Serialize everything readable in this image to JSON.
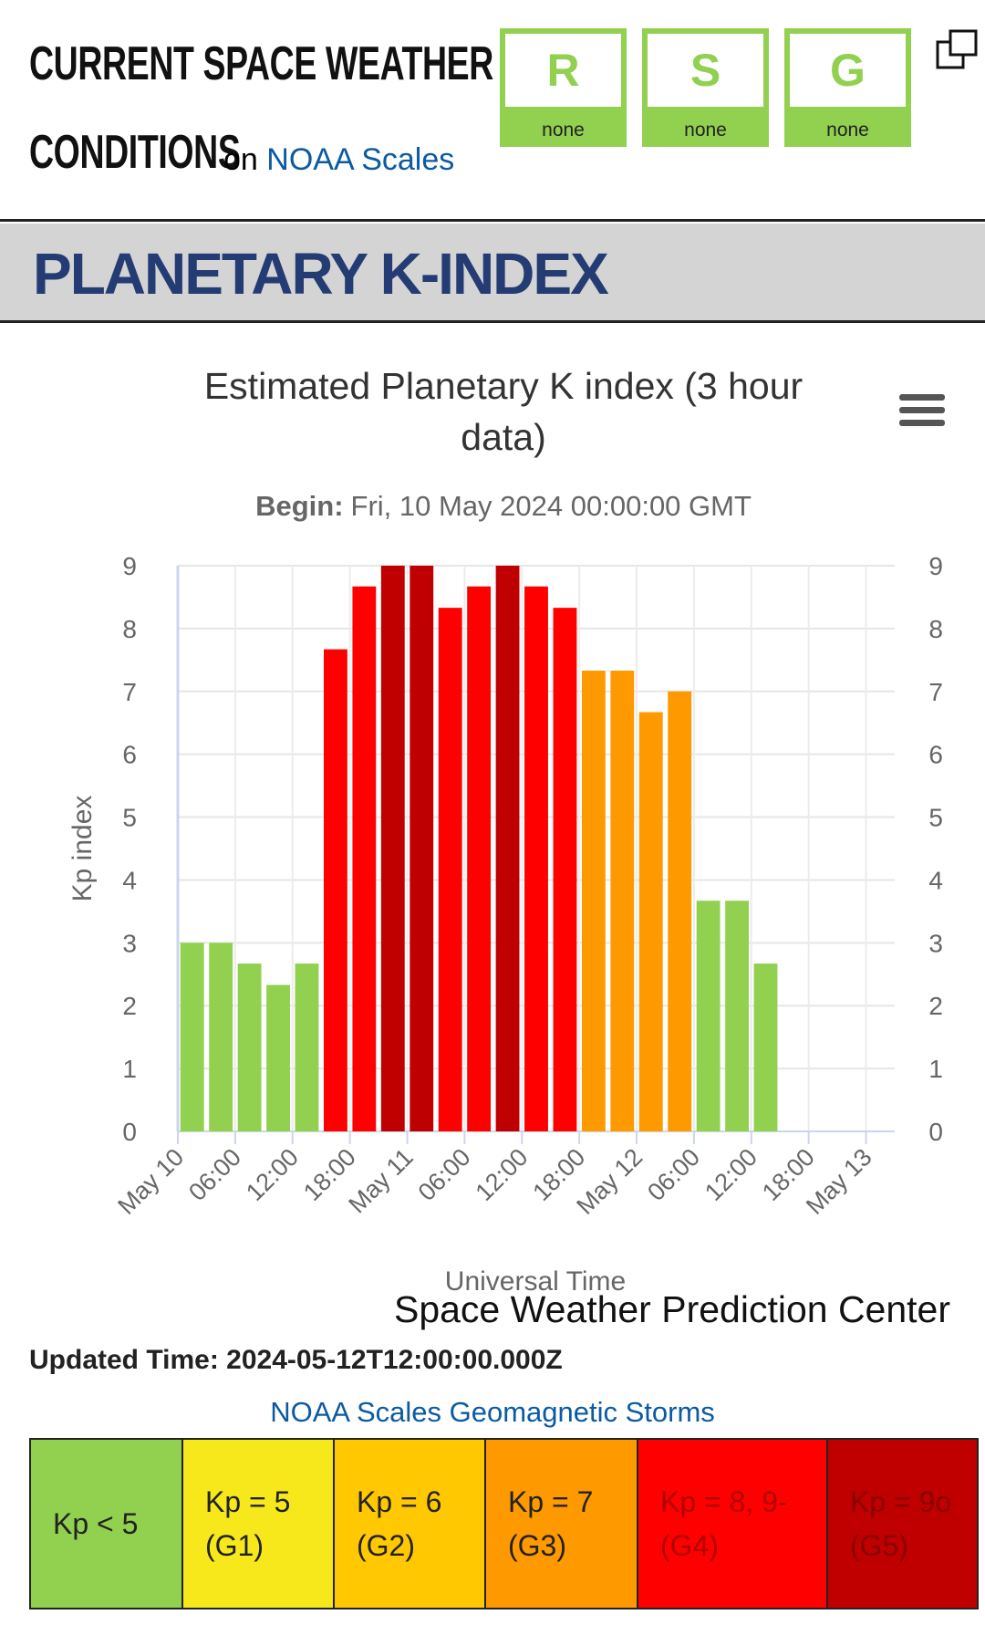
{
  "header": {
    "title_line1": "CURRENT SPACE WEATHER",
    "title_line2": "CONDITIONS",
    "on": "on",
    "link": "NOAA Scales",
    "scales": [
      {
        "letter": "R",
        "level": "none"
      },
      {
        "letter": "S",
        "level": "none"
      },
      {
        "letter": "G",
        "level": "none"
      }
    ]
  },
  "section_title": "PLANETARY K-INDEX",
  "chart_data": {
    "type": "bar",
    "title": "Estimated Planetary K index (3 hour data)",
    "subtitle_label": "Begin:",
    "subtitle": "Fri, 10 May 2024 00:00:00 GMT",
    "y_label": "Kp index",
    "x_label": "Universal Time",
    "credit": "Space Weather Prediction Center",
    "x": [
      0,
      3,
      6,
      9,
      12,
      15,
      18,
      21,
      24,
      27,
      30,
      33,
      36,
      39,
      42,
      45,
      48,
      51,
      54,
      57,
      60
    ],
    "values": [
      3,
      3,
      2.67,
      2.33,
      2.67,
      7.67,
      8.67,
      9,
      9,
      8.33,
      8.67,
      9,
      8.67,
      8.33,
      7.33,
      7.33,
      6.67,
      7,
      3.67,
      3.67,
      2.67
    ],
    "colors": [
      "#92d050",
      "#92d050",
      "#92d050",
      "#92d050",
      "#92d050",
      "#ff0000",
      "#ff0000",
      "#c00000",
      "#c00000",
      "#ff0000",
      "#ff0000",
      "#c00000",
      "#ff0000",
      "#ff0000",
      "#ff9900",
      "#ff9900",
      "#ff9900",
      "#ff9900",
      "#92d050",
      "#92d050",
      "#92d050"
    ],
    "xlim": [
      0,
      75
    ],
    "xticks": [
      {
        "value": 0,
        "label": "May 10"
      },
      {
        "value": 6,
        "label": "06:00"
      },
      {
        "value": 12,
        "label": "12:00"
      },
      {
        "value": 18,
        "label": "18:00"
      },
      {
        "value": 24,
        "label": "May 11"
      },
      {
        "value": 30,
        "label": "06:00"
      },
      {
        "value": 36,
        "label": "12:00"
      },
      {
        "value": 42,
        "label": "18:00"
      },
      {
        "value": 48,
        "label": "May 12"
      },
      {
        "value": 54,
        "label": "06:00"
      },
      {
        "value": 60,
        "label": "12:00"
      },
      {
        "value": 66,
        "label": "18:00"
      },
      {
        "value": 72,
        "label": "May 13"
      }
    ],
    "ylim": [
      0,
      9
    ],
    "yticks": [
      0,
      1,
      2,
      3,
      4,
      5,
      6,
      7,
      8,
      9
    ],
    "y2lim": [
      0,
      9
    ],
    "y2ticks": [
      0,
      1,
      2,
      3,
      4,
      5,
      6,
      7,
      8,
      9
    ],
    "grid": true
  },
  "updated": "Updated Time: 2024-05-12T12:00:00.000Z",
  "legend_link": "NOAA Scales Geomagnetic Storms",
  "legend_table": [
    {
      "text": "Kp < 5",
      "color": "#92d050",
      "text_color": "#222"
    },
    {
      "text": "Kp = 5 (G1)",
      "color": "#f6e81a",
      "text_color": "#222"
    },
    {
      "text": "Kp = 6 (G2)",
      "color": "#ffc800",
      "text_color": "#222"
    },
    {
      "text": "Kp = 7 (G3)",
      "color": "#ff9900",
      "text_color": "#222"
    },
    {
      "text": "Kp = 8, 9- (G4)",
      "color": "#ff0000",
      "text_color": "#b00000"
    },
    {
      "text": "Kp = 9o (G5)",
      "color": "#c00000",
      "text_color": "#8a0000"
    }
  ]
}
